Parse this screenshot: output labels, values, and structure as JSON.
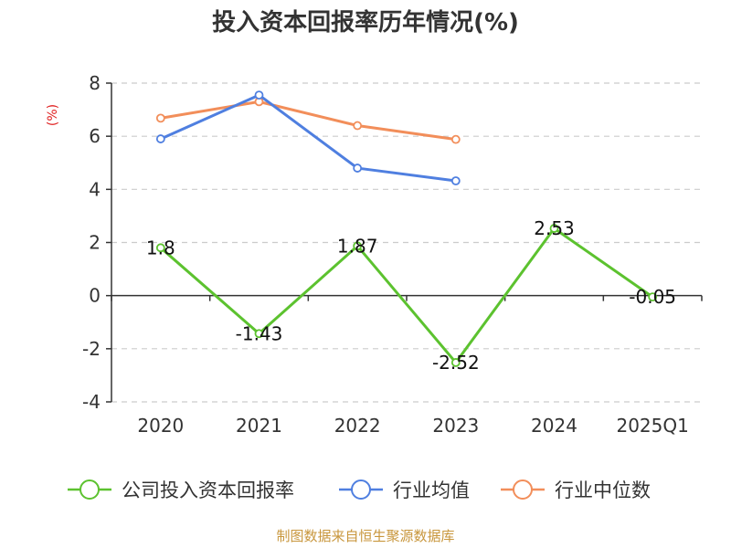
{
  "chart_data": {
    "type": "line",
    "title": "投入资本回报率历年情况(%)",
    "ylabel": "(%)",
    "categories": [
      "2020",
      "2021",
      "2022",
      "2023",
      "2024",
      "2025Q1"
    ],
    "ylim": [
      -4,
      8
    ],
    "yticks": [
      8,
      6,
      4,
      2,
      0,
      -2,
      -4
    ],
    "grid": true,
    "legend_position": "bottom",
    "series": [
      {
        "name": "公司投入资本回报率",
        "color": "#5cc22f",
        "values": [
          1.8,
          -1.43,
          1.87,
          -2.52,
          2.53,
          -0.05
        ],
        "labels": [
          "1.8",
          "-1.43",
          "1.87",
          "-2.52",
          "2.53",
          "-0.05"
        ]
      },
      {
        "name": "行业均值",
        "color": "#4f7fe0",
        "values": [
          5.9,
          7.55,
          4.8,
          4.32,
          null,
          null
        ]
      },
      {
        "name": "行业中位数",
        "color": "#f28e5a",
        "values": [
          6.68,
          7.3,
          6.4,
          5.88,
          null,
          null
        ]
      }
    ]
  },
  "source": "制图数据来自恒生聚源数据库"
}
